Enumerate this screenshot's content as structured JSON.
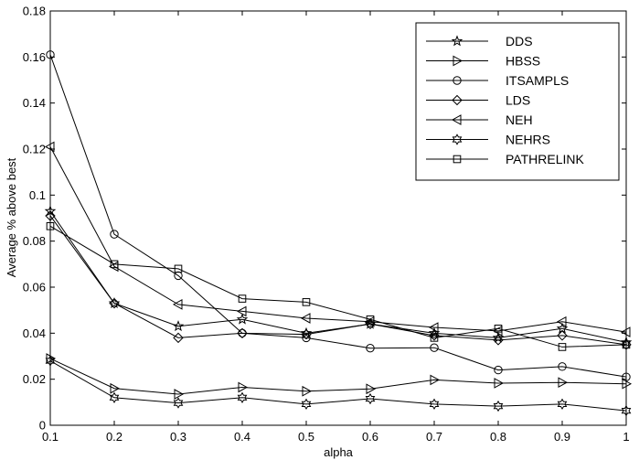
{
  "chart_data": {
    "type": "line",
    "title": "",
    "xlabel": "alpha",
    "ylabel": "Average % above best",
    "xlim": [
      0.1,
      1
    ],
    "ylim": [
      0,
      0.18
    ],
    "xticks": [
      0.1,
      0.2,
      0.3,
      0.4,
      0.5,
      0.6,
      0.7,
      0.8,
      0.9,
      1
    ],
    "xtick_labels": [
      "0.1",
      "0.2",
      "0.3",
      "0.4",
      "0.5",
      "0.6",
      "0.7",
      "0.8",
      "0.9",
      "1"
    ],
    "yticks": [
      0,
      0.02,
      0.04,
      0.06,
      0.08,
      0.1,
      0.12,
      0.14,
      0.16,
      0.18
    ],
    "ytick_labels": [
      "0",
      "0.02",
      "0.04",
      "0.06",
      "0.08",
      "0.1",
      "0.12",
      "0.14",
      "0.16",
      "0.18"
    ],
    "grid": false,
    "legend_position": "top-right",
    "line_color": "#000000",
    "x": [
      0.1,
      0.2,
      0.3,
      0.4,
      0.5,
      0.6,
      0.7,
      0.8,
      0.9,
      1
    ],
    "series": [
      {
        "name": "DDS",
        "marker": "star6",
        "values": [
          0.093,
          0.053,
          0.043,
          0.046,
          0.04,
          0.044,
          0.04,
          0.038,
          0.042,
          0.036
        ]
      },
      {
        "name": "HBSS",
        "marker": "triangle-right",
        "values": [
          0.029,
          0.016,
          0.0135,
          0.0165,
          0.0148,
          0.0158,
          0.0197,
          0.0183,
          0.0186,
          0.018
        ]
      },
      {
        "name": "ITSAMPLS",
        "marker": "circle",
        "values": [
          0.161,
          0.083,
          0.065,
          0.04,
          0.038,
          0.0335,
          0.0337,
          0.024,
          0.0255,
          0.021
        ]
      },
      {
        "name": "LDS",
        "marker": "diamond",
        "values": [
          0.091,
          0.053,
          0.038,
          0.04,
          0.0395,
          0.044,
          0.039,
          0.037,
          0.039,
          0.035
        ]
      },
      {
        "name": "NEH",
        "marker": "triangle-left",
        "values": [
          0.121,
          0.069,
          0.0525,
          0.0495,
          0.0465,
          0.045,
          0.0425,
          0.041,
          0.045,
          0.0405
        ]
      },
      {
        "name": "NEHRS",
        "marker": "hexagram",
        "values": [
          0.028,
          0.012,
          0.0097,
          0.012,
          0.0092,
          0.0115,
          0.0092,
          0.0083,
          0.0092,
          0.0063
        ]
      },
      {
        "name": "PATHRELINK",
        "marker": "square",
        "values": [
          0.0865,
          0.07,
          0.068,
          0.055,
          0.0535,
          0.046,
          0.038,
          0.042,
          0.034,
          0.035
        ]
      }
    ]
  }
}
